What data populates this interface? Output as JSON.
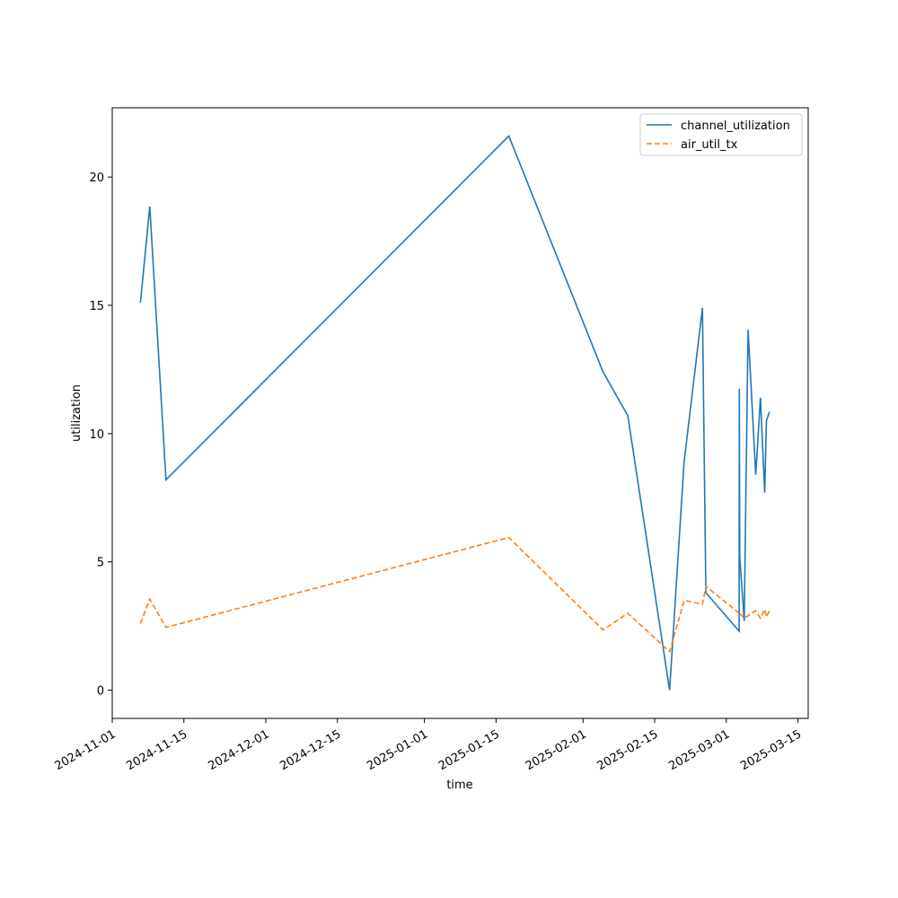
{
  "chart_data": {
    "type": "line",
    "title": "",
    "xlabel": "time",
    "ylabel": "utilization",
    "xlim": [
      "2024-11-01",
      "2025-03-17"
    ],
    "ylim": [
      -1.1,
      22.7
    ],
    "grid": false,
    "legend_position": "top-right",
    "x_ticks": [
      "2024-11-01",
      "2024-11-15",
      "2024-12-01",
      "2024-12-15",
      "2025-01-01",
      "2025-01-15",
      "2025-02-01",
      "2025-02-15",
      "2025-03-01",
      "2025-03-15"
    ],
    "y_ticks": [
      0,
      5,
      10,
      15,
      20
    ],
    "series": [
      {
        "name": "channel_utilization",
        "color": "#1f77b4",
        "style": "solid",
        "points": [
          {
            "x": "2024-11-06 12:00",
            "y": 15.1
          },
          {
            "x": "2024-11-08 08:00",
            "y": 18.85
          },
          {
            "x": "2024-11-11 12:00",
            "y": 8.2
          },
          {
            "x": "2025-01-17 12:00",
            "y": 21.6
          },
          {
            "x": "2025-02-04 22:00",
            "y": 12.4
          },
          {
            "x": "2025-02-09 18:00",
            "y": 10.7
          },
          {
            "x": "2025-02-17 22:00",
            "y": 0.0
          },
          {
            "x": "2025-02-20 18:00",
            "y": 8.9
          },
          {
            "x": "2025-02-24 08:00",
            "y": 14.9
          },
          {
            "x": "2025-02-25 00:00",
            "y": 3.8
          },
          {
            "x": "2025-03-03 12:00",
            "y": 2.3
          },
          {
            "x": "2025-03-03 13:00",
            "y": 11.75
          },
          {
            "x": "2025-03-03 15:00",
            "y": 5.2
          },
          {
            "x": "2025-03-04 12:00",
            "y": 2.7
          },
          {
            "x": "2025-03-05 06:00",
            "y": 14.05
          },
          {
            "x": "2025-03-06 18:00",
            "y": 8.4
          },
          {
            "x": "2025-03-07 16:00",
            "y": 11.4
          },
          {
            "x": "2025-03-08 12:00",
            "y": 7.7
          },
          {
            "x": "2025-03-08 20:00",
            "y": 10.5
          },
          {
            "x": "2025-03-09 10:00",
            "y": 10.85
          }
        ]
      },
      {
        "name": "air_util_tx",
        "color": "#ff7f0e",
        "style": "dashed",
        "points": [
          {
            "x": "2024-11-06 12:00",
            "y": 2.6
          },
          {
            "x": "2024-11-08 08:00",
            "y": 3.55
          },
          {
            "x": "2024-11-11 12:00",
            "y": 2.45
          },
          {
            "x": "2025-01-17 12:00",
            "y": 5.95
          },
          {
            "x": "2025-02-04 22:00",
            "y": 2.35
          },
          {
            "x": "2025-02-09 18:00",
            "y": 3.0
          },
          {
            "x": "2025-02-17 22:00",
            "y": 1.5
          },
          {
            "x": "2025-02-20 18:00",
            "y": 3.5
          },
          {
            "x": "2025-02-24 08:00",
            "y": 3.35
          },
          {
            "x": "2025-02-25 00:00",
            "y": 4.05
          },
          {
            "x": "2025-03-03 12:00",
            "y": 3.0
          },
          {
            "x": "2025-03-03 13:00",
            "y": 3.05
          },
          {
            "x": "2025-03-03 15:00",
            "y": 3.0
          },
          {
            "x": "2025-03-04 12:00",
            "y": 2.8
          },
          {
            "x": "2025-03-05 06:00",
            "y": 2.9
          },
          {
            "x": "2025-03-06 18:00",
            "y": 3.1
          },
          {
            "x": "2025-03-07 16:00",
            "y": 2.8
          },
          {
            "x": "2025-03-08 12:00",
            "y": 3.15
          },
          {
            "x": "2025-03-08 20:00",
            "y": 2.85
          },
          {
            "x": "2025-03-09 10:00",
            "y": 3.1
          }
        ]
      }
    ]
  }
}
